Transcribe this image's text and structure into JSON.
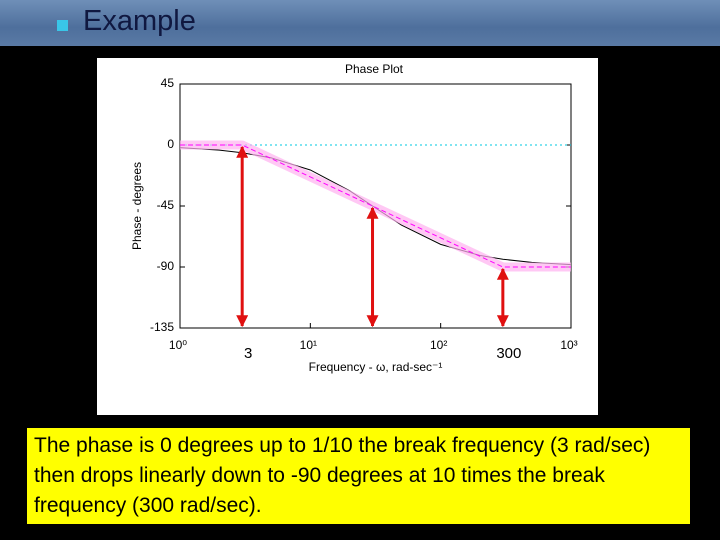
{
  "slide": {
    "heading": "Example",
    "caption": "The phase is 0 degrees up to 1/10 the break frequency (3 rad/sec) then drops linearly down to -90 degrees at 10 times the break frequency (300 rad/sec)."
  },
  "chart_data": {
    "type": "line",
    "title": "Phase Plot",
    "x_label": "Frequency - ω, rad-sec⁻¹",
    "y_label": "Phase - degrees",
    "x_scale": "log",
    "xlim": [
      1,
      1000
    ],
    "ylim": [
      -135,
      45
    ],
    "xticks": [
      {
        "value": 1,
        "label": "10⁰"
      },
      {
        "value": 10,
        "label": "10¹"
      },
      {
        "value": 100,
        "label": "10²"
      },
      {
        "value": 1000,
        "label": "10³"
      }
    ],
    "yticks": [
      -135,
      -90,
      -45,
      0,
      45
    ],
    "grid": false,
    "series": [
      {
        "color": "#00c8e0",
        "style": "dotted",
        "x": [
          1,
          1000
        ],
        "values": [
          0,
          0
        ]
      },
      {
        "color": "#000000",
        "style": "solid",
        "x": [
          1,
          2,
          3,
          5,
          10,
          20,
          30,
          50,
          100,
          200,
          300,
          500,
          1000
        ],
        "values": [
          -1.91,
          -3.81,
          -5.71,
          -9.46,
          -18.43,
          -33.69,
          -45,
          -59.04,
          -73.3,
          -81.47,
          -84.29,
          -86.57,
          -88.28
        ]
      },
      {
        "color": "#ff00ff",
        "style": "dashed",
        "x": [
          1,
          3,
          300,
          1000
        ],
        "values": [
          0,
          0,
          -90,
          -90
        ]
      }
    ],
    "arrows": [
      {
        "x": 3,
        "from": 0,
        "label": "3"
      },
      {
        "x": 30,
        "from": -45
      },
      {
        "x": 300,
        "from": -90,
        "label": "300"
      }
    ],
    "arrow_color": "#e01010"
  }
}
